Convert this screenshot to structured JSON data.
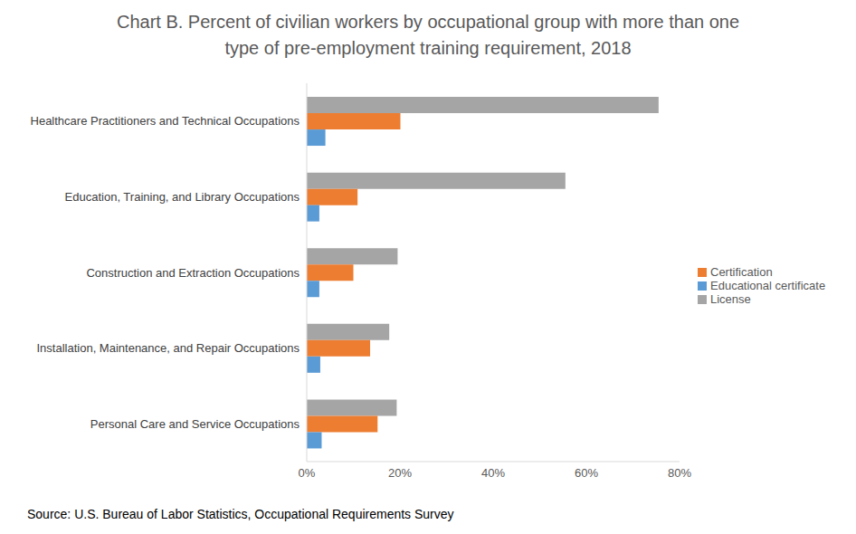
{
  "chart_data": {
    "type": "bar",
    "orientation": "horizontal",
    "title": [
      "Chart B. Percent of civilian workers by occupational group with more than one",
      "type of pre-employment training requirement, 2018"
    ],
    "source": "Source: U.S. Bureau of Labor Statistics, Occupational Requirements Survey",
    "categories": [
      "Healthcare Practitioners and Technical Occupations",
      "Education, Training, and Library Occupations",
      "Construction and Extraction Occupations",
      "Installation, Maintenance, and Repair Occupations",
      "Personal Care and Service Occupations"
    ],
    "series": [
      {
        "name": "License",
        "color": "#a5a5a5",
        "values": [
          75.5,
          55.5,
          19.5,
          17.7,
          19.3
        ]
      },
      {
        "name": "Certification",
        "color": "#ed7d31",
        "values": [
          20.1,
          10.9,
          10.0,
          13.6,
          15.2
        ]
      },
      {
        "name": "Educational certificate",
        "color": "#5b9bd5",
        "values": [
          4.0,
          2.7,
          2.7,
          2.9,
          3.2
        ]
      }
    ],
    "xlim": [
      0,
      80
    ],
    "xticks": [
      {
        "value": 0,
        "label": "0%"
      },
      {
        "value": 20,
        "label": "20%"
      },
      {
        "value": 40,
        "label": "40%"
      },
      {
        "value": 60,
        "label": "60%"
      },
      {
        "value": 80,
        "label": "80%"
      }
    ],
    "grid": false,
    "legend": "right",
    "data_labels": false
  }
}
